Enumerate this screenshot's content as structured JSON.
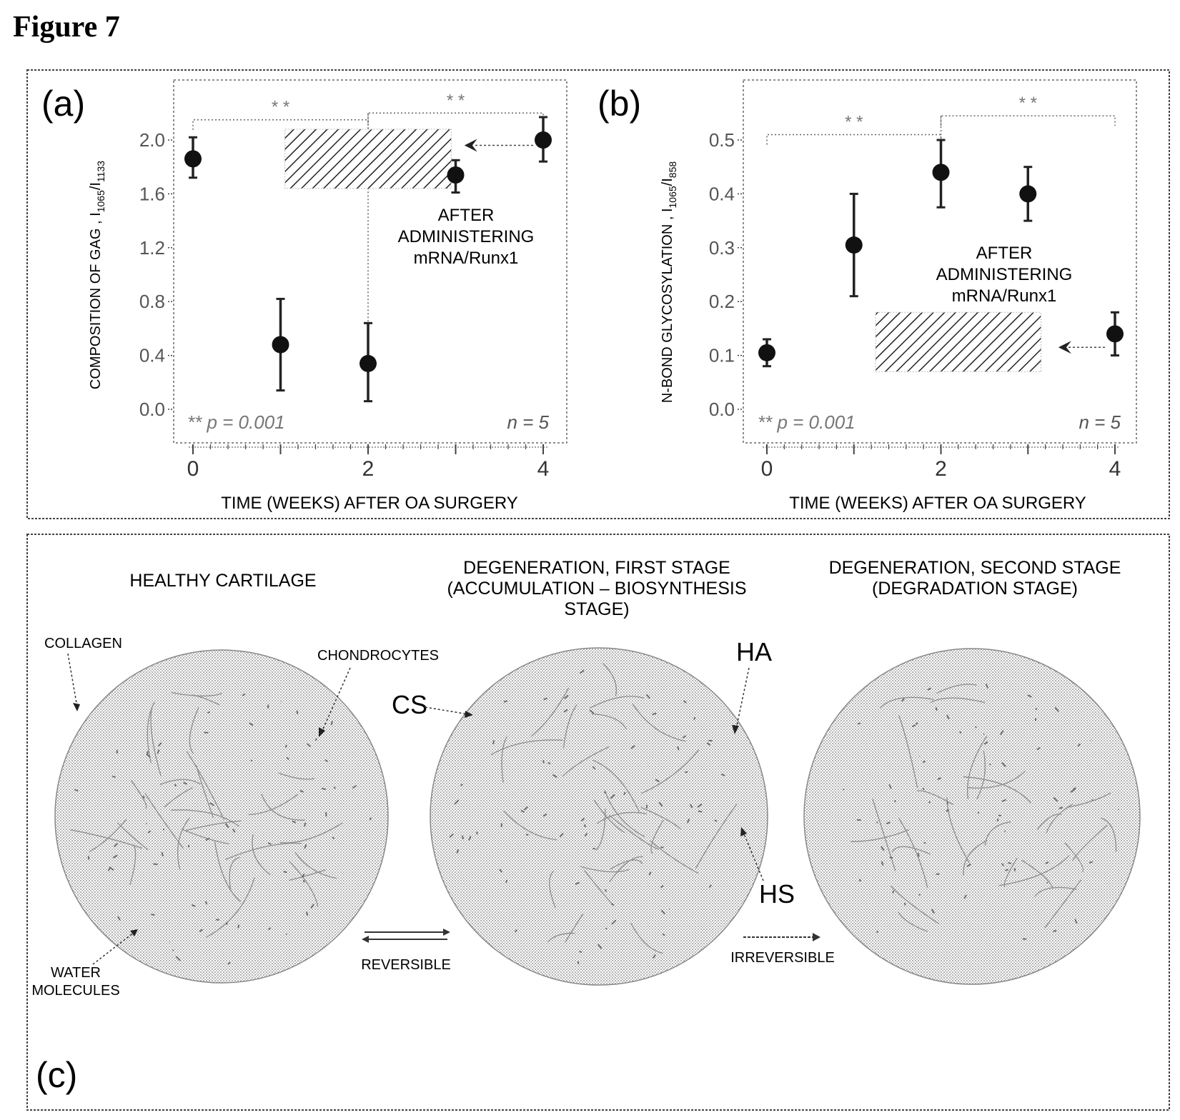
{
  "figure_title": "Figure 7",
  "panels": {
    "a": {
      "letter": "(a)",
      "ylabel_main": "COMPOSITION OF GAG , I",
      "ylabel_sub": "1065",
      "ylabel_slash": "/I",
      "ylabel_sub2": "1133",
      "xlabel": "TIME (WEEKS) AFTER OA SURGERY",
      "pval": "** p = 0.001",
      "n": "n = 5",
      "sig1": "* *",
      "sig2": "* *",
      "annotation": [
        "AFTER",
        "ADMINISTERING",
        "mRNA/Runx1"
      ]
    },
    "b": {
      "letter": "(b)",
      "ylabel_main": "N-BOND GLYCOSYLATION , I",
      "ylabel_sub": "1065",
      "ylabel_slash": "/I",
      "ylabel_sub2": "858",
      "xlabel": "TIME (WEEKS) AFTER OA SURGERY",
      "pval": "** p = 0.001",
      "n": "n = 5",
      "sig1": "* *",
      "sig2": "* *",
      "annotation": [
        "AFTER",
        "ADMINISTERING",
        "mRNA/Runx1"
      ]
    },
    "c": {
      "letter": "(c)",
      "stage1": [
        "HEALTHY CARTILAGE"
      ],
      "stage2": [
        "DEGENERATION, FIRST STAGE",
        "(ACCUMULATION – BIOSYNTHESIS",
        "STAGE)"
      ],
      "stage3": [
        "DEGENERATION, SECOND STAGE",
        "(DEGRADATION STAGE)"
      ],
      "label_collagen": "COLLAGEN",
      "label_chondrocytes": "CHONDROCYTES",
      "label_water": [
        "WATER",
        "MOLECULES"
      ],
      "label_cs": "CS",
      "label_ha": "HA",
      "label_hs": "HS",
      "label_reversible": "REVERSIBLE",
      "label_irreversible": "IRREVERSIBLE"
    }
  },
  "chart_data": [
    {
      "type": "scatter",
      "panel": "a",
      "xlabel": "TIME (WEEKS) AFTER OA SURGERY",
      "ylabel": "COMPOSITION OF GAG , I1065/I1133",
      "xlim": [
        0,
        4
      ],
      "ylim": [
        0.0,
        2.0
      ],
      "x_ticks": [
        0,
        2,
        4
      ],
      "y_ticks": [
        "0.0",
        "0.4",
        "0.8",
        "1.2",
        "1.6",
        "2.0"
      ],
      "points": [
        {
          "x": 0,
          "y": 1.86,
          "err_low": 1.72,
          "err_high": 2.02
        },
        {
          "x": 1,
          "y": 0.48,
          "err_low": 0.14,
          "err_high": 0.82
        },
        {
          "x": 2,
          "y": 0.34,
          "err_low": 0.06,
          "err_high": 0.64
        },
        {
          "x": 3,
          "y": 1.74,
          "err_low": 1.61,
          "err_high": 1.85
        },
        {
          "x": 4,
          "y": 2.0,
          "err_low": 1.84,
          "err_high": 2.17
        }
      ],
      "hatched_box": {
        "x_from": 1.05,
        "x_to": 2.95,
        "y_from": 1.64,
        "y_to": 2.08
      },
      "arrow_from_x": 4,
      "arrow_to_x": 3.1,
      "arrow_y": 1.96,
      "sig_bracket_1": {
        "from": 0,
        "to": 2,
        "y": 2.15
      },
      "sig_bracket_2": {
        "from": 2,
        "to": 4,
        "y": 2.2
      }
    },
    {
      "type": "scatter",
      "panel": "b",
      "xlabel": "TIME (WEEKS) AFTER OA SURGERY",
      "ylabel": "N-BOND GLYCOSYLATION , I1065/I858",
      "xlim": [
        0,
        4
      ],
      "ylim": [
        0.0,
        0.5
      ],
      "x_ticks": [
        0,
        2,
        4
      ],
      "y_ticks": [
        "0.0",
        "0.1",
        "0.2",
        "0.3",
        "0.4",
        "0.5"
      ],
      "points": [
        {
          "x": 0,
          "y": 0.105,
          "err_low": 0.08,
          "err_high": 0.13
        },
        {
          "x": 1,
          "y": 0.305,
          "err_low": 0.21,
          "err_high": 0.4
        },
        {
          "x": 2,
          "y": 0.44,
          "err_low": 0.375,
          "err_high": 0.5
        },
        {
          "x": 3,
          "y": 0.4,
          "err_low": 0.35,
          "err_high": 0.45
        },
        {
          "x": 4,
          "y": 0.14,
          "err_low": 0.1,
          "err_high": 0.18
        }
      ],
      "hatched_box": {
        "x_from": 1.25,
        "x_to": 3.15,
        "y_from": 0.07,
        "y_to": 0.18
      },
      "arrow_from_x": 4,
      "arrow_to_x": 3.35,
      "arrow_y": 0.115,
      "sig_bracket_1": {
        "from": 0,
        "to": 2,
        "y": 0.51
      },
      "sig_bracket_2": {
        "from": 2,
        "to": 4,
        "y": 0.545
      }
    }
  ]
}
